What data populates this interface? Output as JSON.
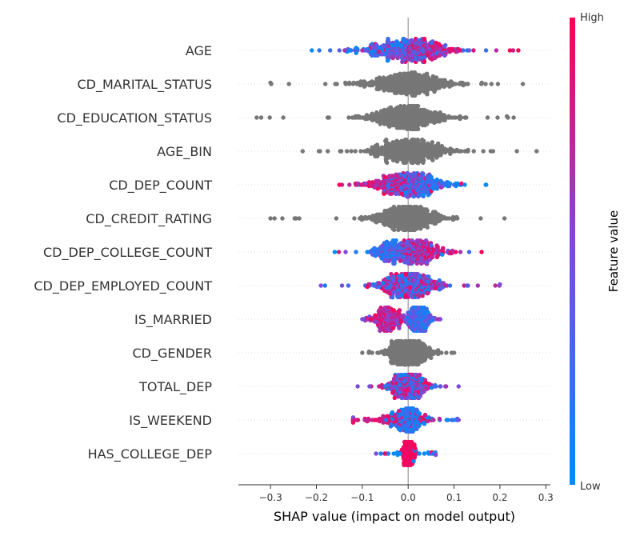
{
  "chart_data": {
    "type": "scatter",
    "subtype": "shap-beeswarm",
    "title": "",
    "xlabel": "SHAP value (impact on model output)",
    "xlim": [
      -0.37,
      0.31
    ],
    "xticks": [
      -0.3,
      -0.2,
      -0.1,
      0.0,
      0.1,
      0.2,
      0.3
    ],
    "xtick_labels": [
      "−0.3",
      "−0.2",
      "−0.1",
      "0.0",
      "0.1",
      "0.2",
      "0.3"
    ],
    "zero_line": true,
    "colorbar": {
      "title": "Feature value",
      "high_label": "High",
      "low_label": "Low",
      "low_color": "#008bfb",
      "mid_color": "#7c4bdb",
      "high_color": "#ff0052"
    },
    "no_feature_value_color": "#777777",
    "features": [
      {
        "name": "AGE",
        "colored": true,
        "min": -0.21,
        "max": 0.24,
        "spread": 0.075,
        "skew": "high_positive",
        "density": 1.0
      },
      {
        "name": "CD_MARITAL_STATUS",
        "colored": false,
        "min": -0.3,
        "max": 0.25,
        "spread": 0.08,
        "skew": "none",
        "density": 1.0
      },
      {
        "name": "CD_EDUCATION_STATUS",
        "colored": false,
        "min": -0.33,
        "max": 0.23,
        "spread": 0.075,
        "skew": "none",
        "density": 1.0
      },
      {
        "name": "AGE_BIN",
        "colored": false,
        "min": -0.23,
        "max": 0.28,
        "spread": 0.08,
        "skew": "none",
        "density": 1.0
      },
      {
        "name": "CD_DEP_COUNT",
        "colored": true,
        "min": -0.15,
        "max": 0.17,
        "spread": 0.06,
        "skew": "high_negative",
        "density": 1.0
      },
      {
        "name": "CD_CREDIT_RATING",
        "colored": false,
        "min": -0.3,
        "max": 0.21,
        "spread": 0.065,
        "skew": "none",
        "density": 1.0
      },
      {
        "name": "CD_DEP_COLLEGE_COUNT",
        "colored": true,
        "min": -0.16,
        "max": 0.16,
        "spread": 0.05,
        "skew": "high_positive",
        "density": 1.0
      },
      {
        "name": "CD_DEP_EMPLOYED_COUNT",
        "colored": true,
        "min": -0.19,
        "max": 0.2,
        "spread": 0.055,
        "skew": "mixed",
        "density": 1.0
      },
      {
        "name": "IS_MARRIED",
        "colored": true,
        "min": -0.1,
        "max": 0.07,
        "spread": 0.03,
        "skew": "split",
        "density": 1.0
      },
      {
        "name": "CD_GENDER",
        "colored": false,
        "min": -0.1,
        "max": 0.1,
        "spread": 0.04,
        "skew": "none",
        "density": 1.0
      },
      {
        "name": "TOTAL_DEP",
        "colored": true,
        "min": -0.11,
        "max": 0.11,
        "spread": 0.035,
        "skew": "mixed",
        "density": 0.8
      },
      {
        "name": "IS_WEEKEND",
        "colored": true,
        "min": -0.12,
        "max": 0.11,
        "spread": 0.025,
        "skew": "low_positive",
        "density": 0.65
      },
      {
        "name": "HAS_COLLEGE_DEP",
        "colored": true,
        "min": -0.07,
        "max": 0.06,
        "spread": 0.008,
        "skew": "high_center",
        "density": 0.35
      }
    ]
  }
}
